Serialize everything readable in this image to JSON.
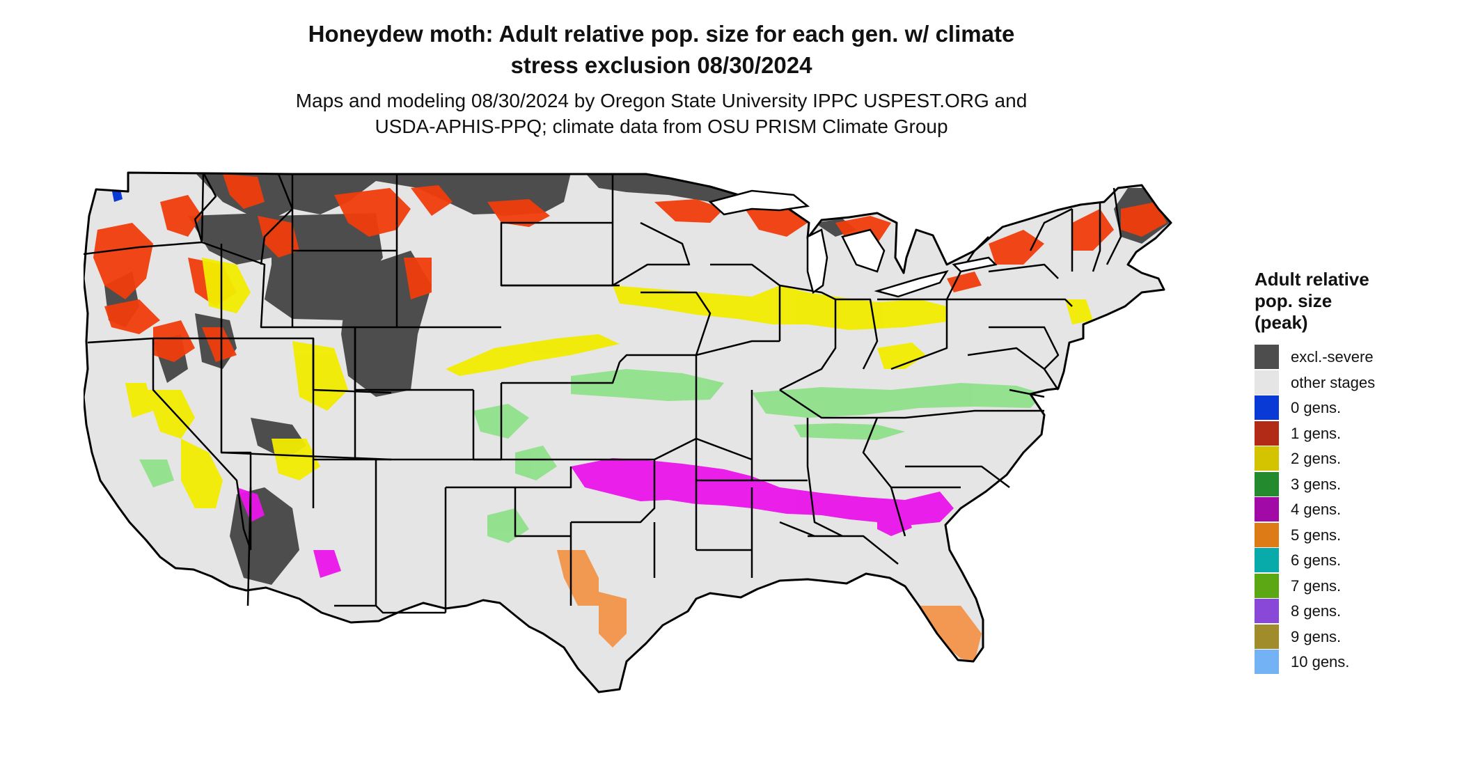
{
  "header": {
    "title_line1": "Honeydew moth: Adult relative pop. size for each gen. w/ climate",
    "title_line2": "stress exclusion 08/30/2024",
    "subtitle_line1": "Maps and modeling 08/30/2024 by Oregon State University IPPC USPEST.ORG and",
    "subtitle_line2": "USDA-APHIS-PPQ; climate data from OSU PRISM Climate Group"
  },
  "legend": {
    "title_line1": "Adult relative",
    "title_line2": "pop. size",
    "title_line3": "(peak)",
    "items": [
      {
        "label": "excl.-severe",
        "color": "#4d4d4d"
      },
      {
        "label": "other stages",
        "color": "#e5e5e5"
      },
      {
        "label": "0 gens.",
        "color": "#0a3ad6"
      },
      {
        "label": "1 gens.",
        "color": "#b22b16"
      },
      {
        "label": "2 gens.",
        "color": "#d4c400"
      },
      {
        "label": "3 gens.",
        "color": "#248a2e"
      },
      {
        "label": "4 gens.",
        "color": "#a10aa6"
      },
      {
        "label": "5 gens.",
        "color": "#dd7c16"
      },
      {
        "label": "6 gens.",
        "color": "#08aaaa"
      },
      {
        "label": "7 gens.",
        "color": "#5ca814"
      },
      {
        "label": "8 gens.",
        "color": "#8a48d8"
      },
      {
        "label": "9 gens.",
        "color": "#a08c2a"
      },
      {
        "label": "10 gens.",
        "color": "#73b2f5"
      }
    ]
  },
  "map_colors": {
    "land": "#e5e5e5",
    "excluded": "#4d4d4d",
    "gen1_map": "#f03d0c",
    "gen2_map": "#f2ec00",
    "gen3_map": "#8fe08a",
    "gen4_map": "#ea14ea",
    "gen5_map": "#f2944a",
    "border": "#000000"
  }
}
